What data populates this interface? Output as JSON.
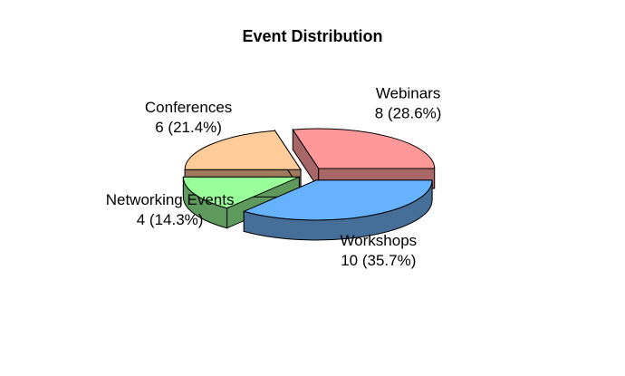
{
  "chart_data": {
    "type": "pie",
    "style": "3d-exploded",
    "title": "Event Distribution",
    "slices": [
      {
        "category": "Webinars",
        "value": 8,
        "percent_label": "8 (28.6%)",
        "color": "#FF9999",
        "side_color": "#A86666"
      },
      {
        "category": "Conferences",
        "value": 6,
        "percent_label": "6 (21.4%)",
        "color": "#FFCC99",
        "side_color": "#9F7A5E"
      },
      {
        "category": "Networking Events",
        "value": 4,
        "percent_label": "4 (14.3%)",
        "color": "#99FF99",
        "side_color": "#5E9A5E"
      },
      {
        "category": "Workshops",
        "value": 10,
        "percent_label": "10 (35.7%)",
        "color": "#66B2FF",
        "side_color": "#456E99"
      }
    ]
  }
}
